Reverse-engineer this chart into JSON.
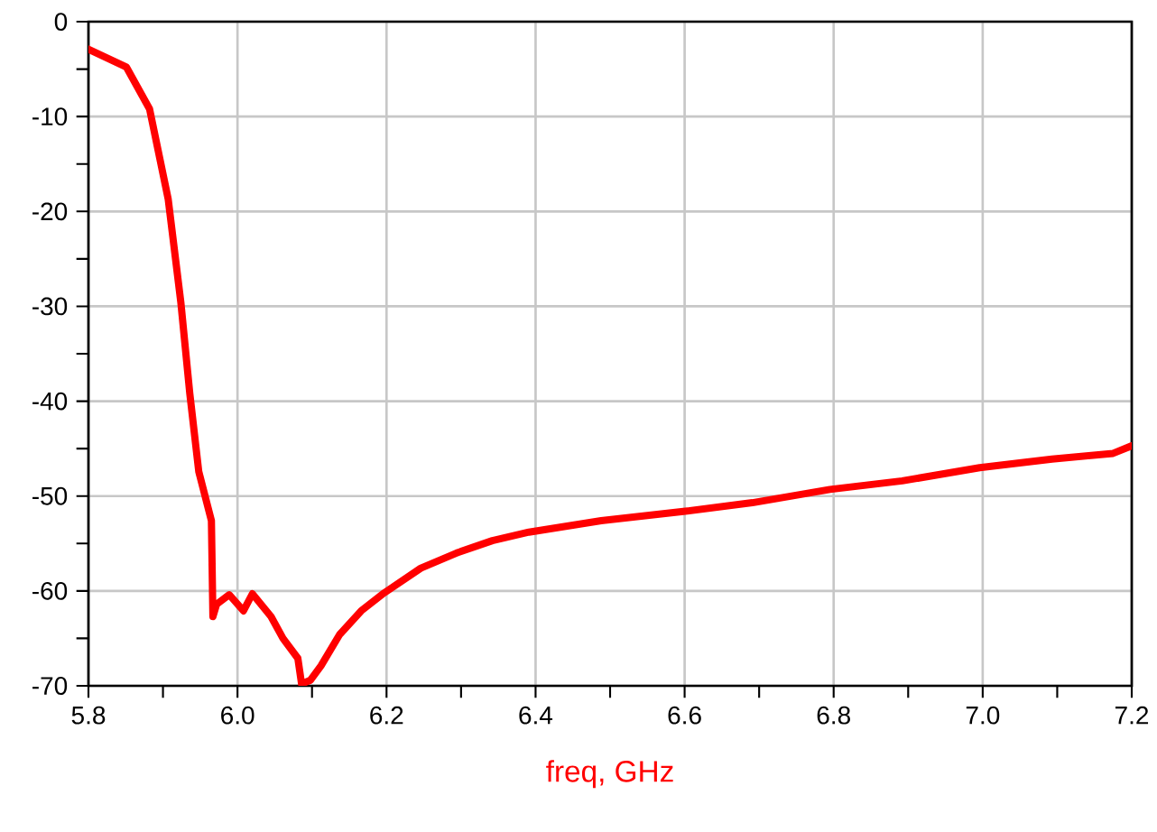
{
  "chart_data": {
    "type": "line",
    "xlabel": "freq, GHz",
    "xlim": [
      5.8,
      7.2
    ],
    "ylim": [
      -70,
      0
    ],
    "xticks": [
      {
        "value": 5.8,
        "label": "5.8"
      },
      {
        "value": 6.0,
        "label": "6.0"
      },
      {
        "value": 6.2,
        "label": "6.2"
      },
      {
        "value": 6.4,
        "label": "6.4"
      },
      {
        "value": 6.6,
        "label": "6.6"
      },
      {
        "value": 6.8,
        "label": "6.8"
      },
      {
        "value": 7.0,
        "label": "7.0"
      },
      {
        "value": 7.2,
        "label": "7.2"
      }
    ],
    "yticks": [
      -70,
      -60,
      -50,
      -40,
      -30,
      -20,
      -10,
      0
    ],
    "grid": true,
    "marker": "none",
    "line_style": "solid",
    "series": [
      {
        "color": "#ff0000",
        "x": [
          5.8,
          5.851,
          5.882,
          5.907,
          5.924,
          5.936,
          5.948,
          5.965,
          5.967,
          5.972,
          5.989,
          6.008,
          6.02,
          6.045,
          6.061,
          6.081,
          6.086,
          6.098,
          6.112,
          6.137,
          6.166,
          6.197,
          6.246,
          6.294,
          6.342,
          6.391,
          6.488,
          6.601,
          6.691,
          6.795,
          6.892,
          6.996,
          7.093,
          7.175,
          7.2
        ],
        "values": [
          -2.9,
          -4.8,
          -9.2,
          -18.7,
          -29.6,
          -39.2,
          -47.4,
          -52.6,
          -62.7,
          -61.4,
          -60.4,
          -62.1,
          -60.3,
          -62.7,
          -65,
          -67.1,
          -69.8,
          -69.4,
          -67.9,
          -64.6,
          -62.1,
          -60.2,
          -57.6,
          -56,
          -54.7,
          -53.8,
          -52.6,
          -51.6,
          -50.7,
          -49.3,
          -48.4,
          -47,
          -46.1,
          -45.5,
          -44.7
        ]
      }
    ]
  }
}
